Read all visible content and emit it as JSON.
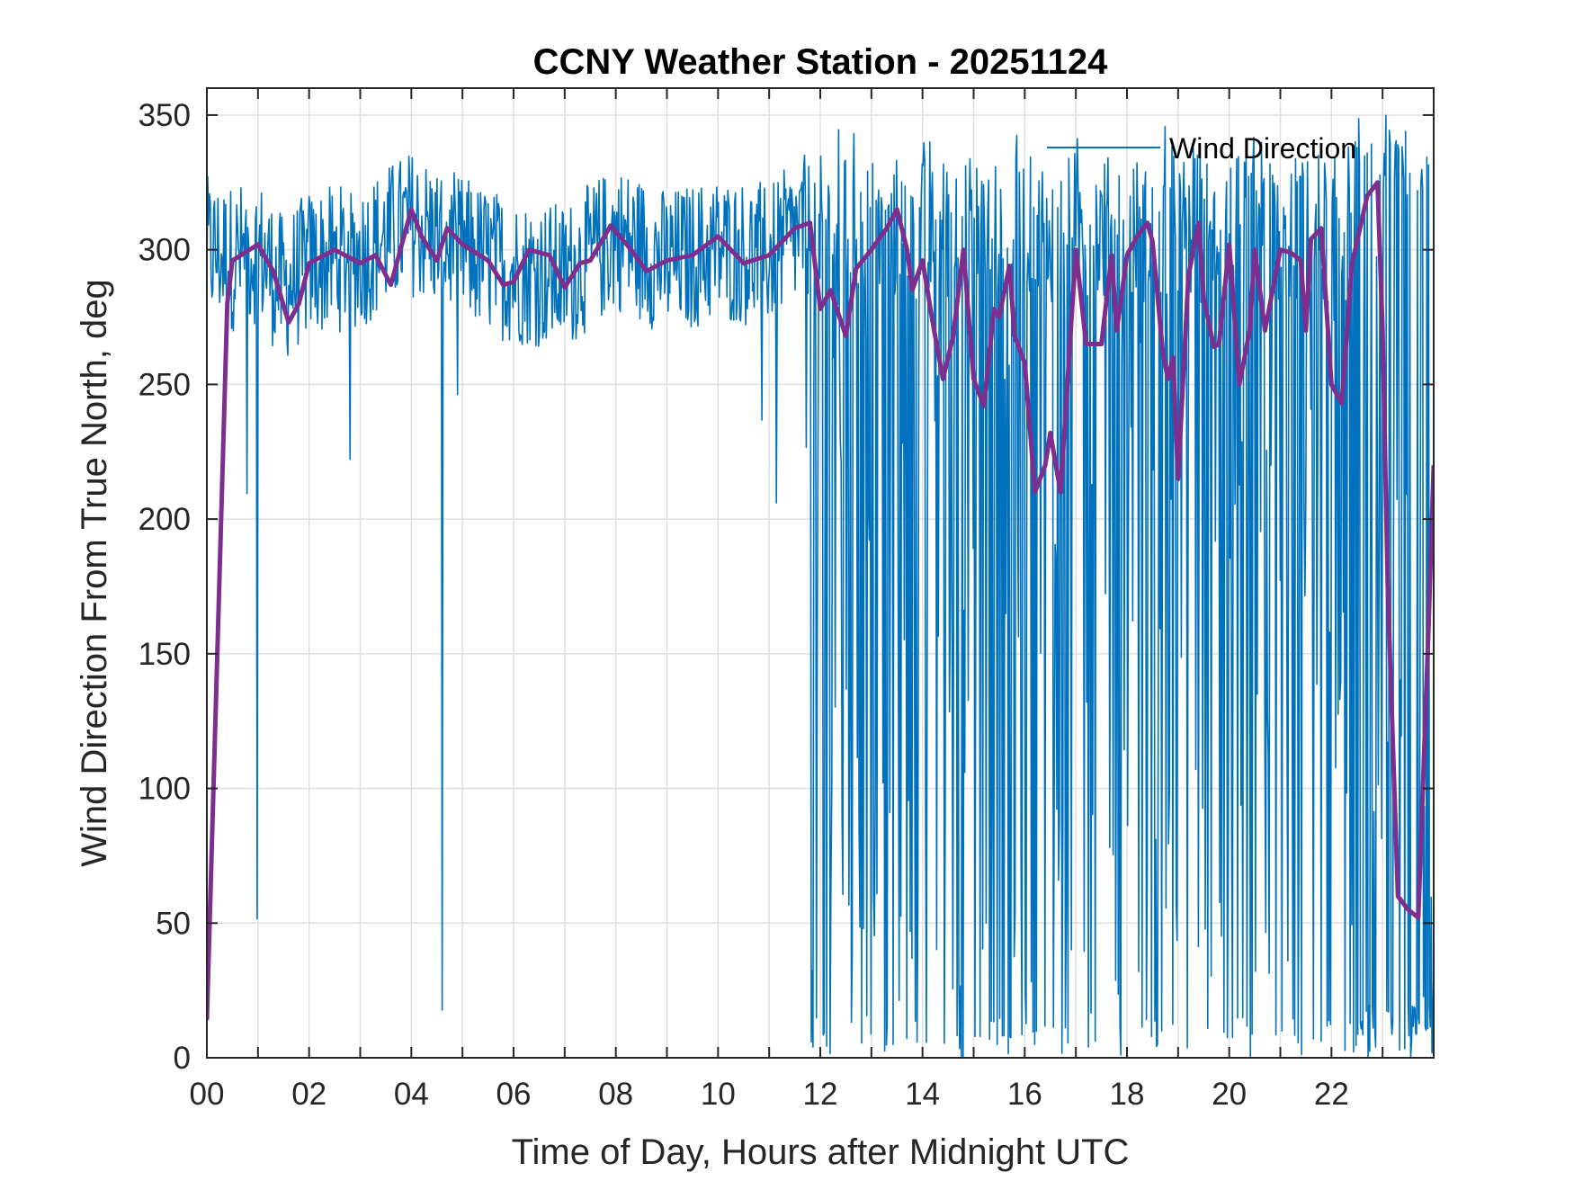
{
  "chart_data": {
    "type": "line",
    "title": "CCNY Weather Station - 20251124",
    "xlabel": "Time of Day, Hours after Midnight UTC",
    "ylabel": "Wind Direction From True North, deg",
    "xlim": [
      0,
      24
    ],
    "ylim": [
      0,
      360
    ],
    "xticks": [
      0,
      2,
      4,
      6,
      8,
      10,
      12,
      14,
      16,
      18,
      20,
      22
    ],
    "xtick_labels": [
      "00",
      "02",
      "04",
      "06",
      "08",
      "10",
      "12",
      "14",
      "16",
      "18",
      "20",
      "22"
    ],
    "yticks": [
      0,
      50,
      100,
      150,
      200,
      250,
      300,
      350
    ],
    "ytick_labels": [
      "0",
      "50",
      "100",
      "150",
      "200",
      "250",
      "300",
      "350"
    ],
    "grid": true,
    "legend": {
      "position": "top-right",
      "entries": [
        "Wind Direction"
      ]
    },
    "series": [
      {
        "name": "Wind Direction",
        "color": "#0072BD",
        "description": "raw 1-minute samples (approximate reconstruction)",
        "anchors": {
          "x": [
            0,
            0.5,
            1,
            1.5,
            2,
            3,
            4,
            5,
            6,
            7,
            8,
            9,
            10,
            11,
            11.7,
            12,
            13,
            13.5,
            14,
            15,
            16,
            17,
            18,
            19,
            20,
            21,
            22,
            22.5,
            23,
            23.5,
            24
          ],
          "y": [
            300,
            297,
            300,
            285,
            295,
            298,
            310,
            300,
            292,
            290,
            305,
            295,
            300,
            298,
            308,
            300,
            305,
            310,
            280,
            270,
            240,
            280,
            290,
            275,
            270,
            290,
            310,
            300,
            40,
            120,
            250
          ]
        }
      },
      {
        "name": "",
        "color": "#7E2F8E",
        "description": "smoothed running average",
        "x": [
          0,
          0.4,
          0.5,
          1.0,
          1.3,
          1.6,
          1.8,
          2.0,
          2.5,
          3.0,
          3.3,
          3.6,
          4.0,
          4.2,
          4.5,
          4.7,
          5.0,
          5.5,
          5.8,
          6.0,
          6.3,
          6.7,
          7.0,
          7.3,
          7.5,
          7.9,
          8.3,
          8.6,
          9.0,
          9.5,
          10.0,
          10.5,
          11.0,
          11.5,
          11.8,
          12.0,
          12.2,
          12.5,
          12.7,
          13.0,
          13.3,
          13.5,
          13.7,
          13.8,
          14.0,
          14.2,
          14.4,
          14.6,
          14.8,
          15.0,
          15.2,
          15.4,
          15.5,
          15.7,
          15.8,
          16.0,
          16.2,
          16.4,
          16.5,
          16.7,
          16.8,
          17.0,
          17.2,
          17.5,
          17.7,
          17.8,
          18.0,
          18.2,
          18.4,
          18.5,
          18.7,
          18.8,
          18.9,
          19.0,
          19.2,
          19.4,
          19.5,
          19.7,
          19.8,
          20.0,
          20.2,
          20.4,
          20.5,
          20.7,
          20.8,
          21.0,
          21.2,
          21.4,
          21.5,
          21.6,
          21.8,
          22.0,
          22.2,
          22.4,
          22.5,
          22.7,
          22.9,
          23.0,
          23.1,
          23.3,
          23.5,
          23.7,
          23.9,
          24.0
        ],
        "y": [
          14,
          280,
          296,
          302,
          292,
          273,
          280,
          295,
          300,
          295,
          298,
          287,
          315,
          305,
          296,
          308,
          302,
          296,
          287,
          288,
          300,
          298,
          286,
          295,
          296,
          309,
          300,
          292,
          296,
          298,
          305,
          295,
          298,
          308,
          310,
          278,
          285,
          268,
          293,
          300,
          308,
          315,
          300,
          285,
          296,
          273,
          252,
          268,
          300,
          252,
          242,
          278,
          275,
          294,
          268,
          258,
          210,
          220,
          232,
          210,
          240,
          300,
          265,
          265,
          298,
          270,
          298,
          305,
          310,
          303,
          262,
          252,
          260,
          215,
          290,
          310,
          282,
          264,
          265,
          302,
          250,
          270,
          300,
          270,
          280,
          300,
          299,
          296,
          270,
          304,
          308,
          250,
          243,
          295,
          303,
          320,
          325,
          270,
          175,
          60,
          55,
          52,
          160,
          220
        ]
      }
    ]
  }
}
